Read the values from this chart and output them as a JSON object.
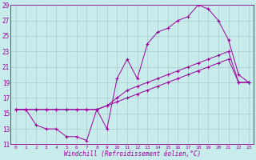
{
  "xlabel": "Windchill (Refroidissement éolien,°C)",
  "background_color": "#c8ecec",
  "grid_color": "#aacccc",
  "line_color": "#990099",
  "xlim": [
    -0.5,
    23.5
  ],
  "ylim": [
    11,
    29
  ],
  "xticks": [
    0,
    1,
    2,
    3,
    4,
    5,
    6,
    7,
    8,
    9,
    10,
    11,
    12,
    13,
    14,
    15,
    16,
    17,
    18,
    19,
    20,
    21,
    22,
    23
  ],
  "yticks": [
    11,
    13,
    15,
    17,
    19,
    21,
    23,
    25,
    27,
    29
  ],
  "series1": [
    [
      0,
      15.5
    ],
    [
      1,
      15.5
    ],
    [
      2,
      13.5
    ],
    [
      3,
      13.0
    ],
    [
      4,
      13.0
    ],
    [
      5,
      12.0
    ],
    [
      6,
      12.0
    ],
    [
      7,
      11.5
    ],
    [
      8,
      15.5
    ],
    [
      9,
      13.0
    ],
    [
      10,
      19.5
    ],
    [
      11,
      22.0
    ],
    [
      12,
      19.5
    ],
    [
      13,
      24.0
    ],
    [
      14,
      25.5
    ],
    [
      15,
      26.0
    ],
    [
      16,
      27.0
    ],
    [
      17,
      27.5
    ],
    [
      18,
      29.0
    ],
    [
      19,
      28.5
    ],
    [
      20,
      27.0
    ],
    [
      21,
      24.5
    ],
    [
      22,
      20.0
    ],
    [
      23,
      19.0
    ]
  ],
  "series2": [
    [
      0,
      15.5
    ],
    [
      1,
      15.5
    ],
    [
      2,
      15.5
    ],
    [
      3,
      15.5
    ],
    [
      4,
      15.5
    ],
    [
      5,
      15.5
    ],
    [
      6,
      15.5
    ],
    [
      7,
      15.5
    ],
    [
      8,
      15.5
    ],
    [
      9,
      16.0
    ],
    [
      10,
      16.5
    ],
    [
      11,
      17.0
    ],
    [
      12,
      17.5
    ],
    [
      13,
      18.0
    ],
    [
      14,
      18.5
    ],
    [
      15,
      19.0
    ],
    [
      16,
      19.5
    ],
    [
      17,
      20.0
    ],
    [
      18,
      20.5
    ],
    [
      19,
      21.0
    ],
    [
      20,
      21.5
    ],
    [
      21,
      22.0
    ],
    [
      22,
      19.0
    ],
    [
      23,
      19.0
    ]
  ],
  "series3": [
    [
      0,
      15.5
    ],
    [
      1,
      15.5
    ],
    [
      2,
      15.5
    ],
    [
      3,
      15.5
    ],
    [
      4,
      15.5
    ],
    [
      5,
      15.5
    ],
    [
      6,
      15.5
    ],
    [
      7,
      15.5
    ],
    [
      8,
      15.5
    ],
    [
      9,
      16.0
    ],
    [
      10,
      17.0
    ],
    [
      11,
      18.0
    ],
    [
      12,
      18.5
    ],
    [
      13,
      19.0
    ],
    [
      14,
      19.5
    ],
    [
      15,
      20.0
    ],
    [
      16,
      20.5
    ],
    [
      17,
      21.0
    ],
    [
      18,
      21.5
    ],
    [
      19,
      22.0
    ],
    [
      20,
      22.5
    ],
    [
      21,
      23.0
    ],
    [
      22,
      19.0
    ],
    [
      23,
      19.0
    ]
  ]
}
